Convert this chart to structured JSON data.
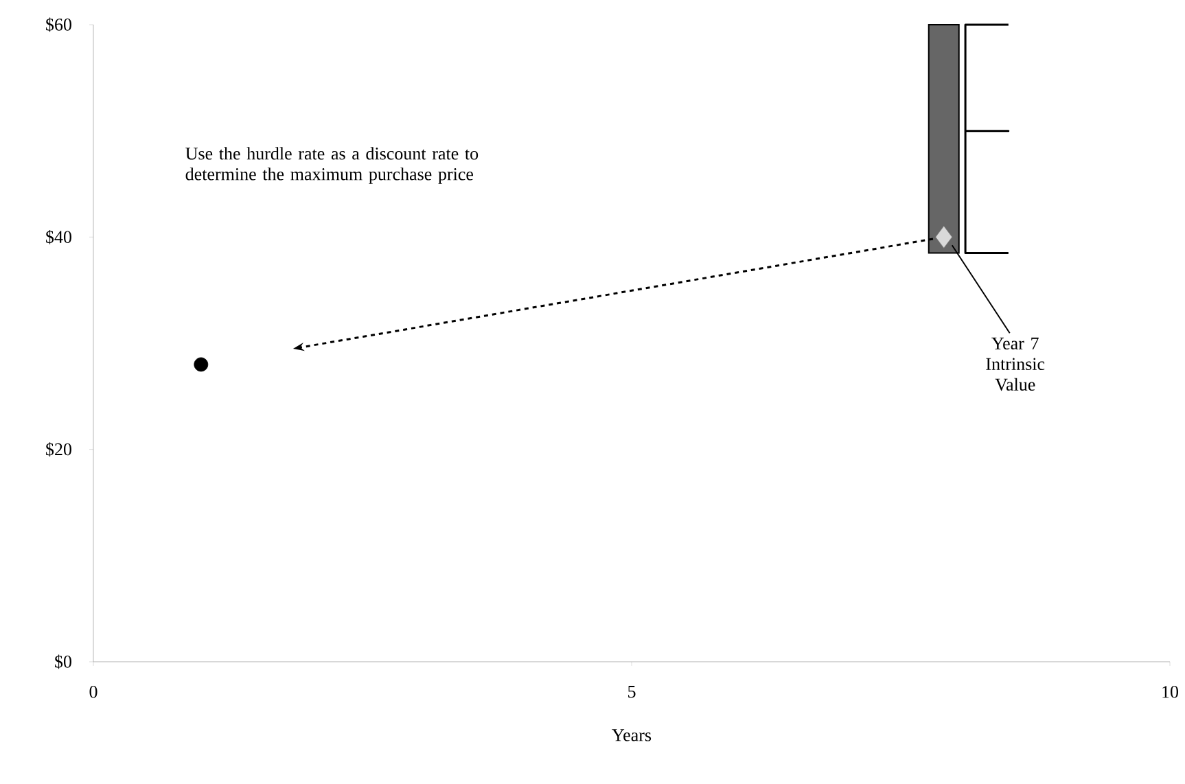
{
  "chart_data": {
    "type": "scatter",
    "xlabel": "Years",
    "xlim": [
      0,
      10
    ],
    "xticks": [
      0,
      5,
      10
    ],
    "ylim": [
      0,
      60
    ],
    "yticks": [
      {
        "value": 0,
        "label": "$0"
      },
      {
        "value": 20,
        "label": "$20"
      },
      {
        "value": 40,
        "label": "$40"
      },
      {
        "value": 60,
        "label": "$60"
      }
    ],
    "grid": false,
    "legend": false,
    "series": [
      {
        "type": "bar",
        "color": "#666666",
        "x": [
          7.9
        ],
        "base": [
          38.5
        ],
        "values": [
          21.5
        ]
      },
      {
        "type": "line",
        "color": "#000000",
        "line_style": "solid",
        "marker": "none",
        "x": [
          8.5,
          8.1,
          8.1,
          8.5,
          8.1,
          8.1,
          8.5
        ],
        "values": [
          60,
          60,
          50,
          50,
          50,
          38.5,
          38.5
        ]
      },
      {
        "color": "#000000",
        "marker": "circle",
        "x": [
          1
        ],
        "values": [
          28
        ]
      },
      {
        "color": "#d9d9d9",
        "marker": "diamond",
        "x": [
          7.9
        ],
        "values": [
          40
        ]
      }
    ],
    "annotations": [
      "Use the hurdle rate as a discount rate to determine the maximum purchase price",
      {
        "text": "Year 7 Intrinsic Value",
        "x": 7.9,
        "y": 40
      }
    ]
  }
}
